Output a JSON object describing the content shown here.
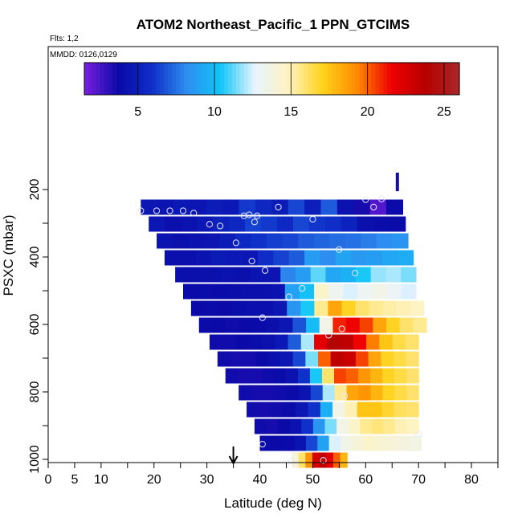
{
  "chart_data": {
    "type": "heatmap",
    "title": "ATOM2 Northeast_Pacific_1 PPN_GTCIMS",
    "flights_label": "Flts: 1,2",
    "dates_label": "MMDD: 0126,0129",
    "xlabel": "Latitude (deg N)",
    "ylabel": "PSXC (mbar)",
    "xlim": [
      0,
      85
    ],
    "ylim": [
      1000,
      100
    ],
    "x_ticks": [
      0,
      5,
      10,
      20,
      30,
      40,
      50,
      60,
      70,
      80
    ],
    "x_minor_ticks": [
      15,
      25,
      35,
      45,
      55,
      65,
      75,
      85
    ],
    "y_ticks": [
      200,
      400,
      600,
      800,
      1000
    ],
    "y_minor_ticks": [
      300,
      500,
      700,
      900
    ],
    "colorbar": {
      "min": 1.5,
      "max": 26,
      "ticks": [
        5,
        10,
        15,
        20,
        25
      ],
      "colors": [
        "#7b1fe0",
        "#0a0aa8",
        "#0f2fc8",
        "#2e8df0",
        "#11c6f7",
        "#e8f4ff",
        "#fff3c0",
        "#ffd21a",
        "#ff8a00",
        "#ee0000",
        "#b70000",
        "#a82828"
      ]
    },
    "grid": false,
    "rows": [
      {
        "p": 250,
        "lat": [
          17.5,
          67
        ],
        "v": [
          4.5,
          4.3,
          4.6,
          4.4,
          4.8,
          4.6,
          6.2,
          5.5,
          4.8,
          6.5,
          5.0,
          7.0,
          4.2,
          3.5,
          2.3,
          3.8
        ]
      },
      {
        "p": 300,
        "lat": [
          19,
          67.5
        ],
        "v": [
          4.5,
          4.0,
          4.2,
          4.6,
          5.2,
          5.5,
          6.4,
          6.2,
          5.6,
          6.5,
          6.1,
          5.9,
          5.2,
          4.0,
          3.9,
          3.8
        ]
      },
      {
        "p": 350,
        "lat": [
          20.5,
          68
        ],
        "v": [
          4.3,
          4.0,
          4.2,
          4.4,
          4.8,
          5.6,
          6.0,
          6.3,
          6.5,
          7.0,
          7.2,
          7.4,
          7.5,
          7.8,
          8.2,
          8.5
        ]
      },
      {
        "p": 400,
        "lat": [
          22,
          69
        ],
        "v": [
          4.1,
          4.0,
          4.3,
          4.7,
          4.6,
          4.5,
          5.8,
          6.4,
          7.0,
          8.8,
          8.2,
          9.1,
          8.6,
          8.8,
          9.2,
          9.4
        ]
      },
      {
        "p": 450,
        "lat": [
          24,
          69.5
        ],
        "v": [
          4.0,
          4.1,
          4.0,
          4.2,
          4.1,
          4.3,
          4.4,
          8.0,
          8.8,
          11.2,
          9.2,
          9.6,
          10.5,
          11.8,
          12.0,
          11.5
        ]
      },
      {
        "p": 500,
        "lat": [
          25.5,
          69.5
        ],
        "v": [
          3.8,
          3.9,
          3.8,
          3.9,
          4.0,
          4.1,
          4.2,
          9.0,
          10.2,
          14.5,
          13.2,
          12.5,
          13.1,
          13.5,
          13.0,
          12.5
        ]
      },
      {
        "p": 550,
        "lat": [
          27,
          71
        ],
        "v": [
          3.7,
          3.8,
          3.7,
          3.9,
          4.0,
          4.1,
          4.5,
          8.5,
          10.5,
          15.5,
          18.5,
          17.0,
          16.0,
          15.5,
          15.2,
          15.0,
          14.8
        ]
      },
      {
        "p": 600,
        "lat": [
          28.5,
          71.5
        ],
        "v": [
          3.8,
          3.7,
          3.6,
          3.7,
          3.8,
          4.0,
          4.5,
          6.8,
          10.0,
          13.5,
          21.0,
          21.5,
          20.5,
          18.5,
          17.0,
          16.0,
          15.5
        ]
      },
      {
        "p": 650,
        "lat": [
          30.5,
          70
        ],
        "v": [
          3.6,
          3.6,
          3.7,
          3.9,
          4.0,
          4.6,
          7.0,
          12.0,
          22.0,
          24.0,
          23.5,
          21.5,
          19.5,
          17.5,
          16.5,
          16.0
        ]
      },
      {
        "p": 700,
        "lat": [
          32,
          70
        ],
        "v": [
          3.6,
          3.5,
          3.5,
          3.7,
          4.0,
          4.5,
          6.5,
          11.5,
          20.0,
          23.5,
          23.0,
          20.5,
          18.5,
          17.0,
          16.5,
          16.0
        ]
      },
      {
        "p": 750,
        "lat": [
          33.5,
          70
        ],
        "v": [
          3.6,
          3.5,
          3.5,
          3.6,
          3.8,
          4.2,
          6.0,
          10.5,
          16.0,
          20.5,
          20.0,
          19.0,
          18.0,
          17.0,
          16.5,
          16.0
        ]
      },
      {
        "p": 800,
        "lat": [
          36,
          70
        ],
        "v": [
          3.6,
          3.5,
          3.5,
          3.6,
          3.8,
          4.3,
          6.5,
          12.0,
          15.5,
          18.5,
          19.0,
          18.0,
          17.0,
          16.5,
          16.0
        ]
      },
      {
        "p": 850,
        "lat": [
          37.5,
          70
        ],
        "v": [
          3.6,
          3.5,
          3.6,
          3.8,
          4.5,
          6.0,
          9.5,
          13.5,
          15.0,
          17.5,
          17.5,
          16.8,
          16.2,
          16.0
        ]
      },
      {
        "p": 900,
        "lat": [
          39,
          70
        ],
        "v": [
          3.6,
          3.5,
          3.7,
          4.2,
          6.0,
          8.5,
          11.5,
          13.5,
          14.5,
          15.5,
          15.8,
          15.5,
          15.0,
          14.8
        ]
      },
      {
        "p": 950,
        "lat": [
          40,
          70.5
        ],
        "v": [
          3.8,
          3.7,
          3.8,
          4.3,
          6.5,
          9.0,
          12.5,
          13.5,
          14.0,
          14.5,
          14.2,
          14.0,
          13.8,
          13.6
        ]
      },
      {
        "p": 1000,
        "lat": [
          46,
          56.5
        ],
        "v": [
          14.0,
          16.0,
          19.0,
          22.5,
          23.5,
          22.0,
          20.0,
          18.0
        ]
      }
    ],
    "spike": {
      "lat": 66,
      "p_top": 150,
      "p_bottom": 205,
      "value": 3.5
    },
    "markers": [
      {
        "lat": 17.5,
        "p": 263
      },
      {
        "lat": 20.5,
        "p": 263
      },
      {
        "lat": 23,
        "p": 263
      },
      {
        "lat": 25.5,
        "p": 263
      },
      {
        "lat": 27.5,
        "p": 270
      },
      {
        "lat": 30.5,
        "p": 303
      },
      {
        "lat": 32.5,
        "p": 308
      },
      {
        "lat": 37,
        "p": 278
      },
      {
        "lat": 38,
        "p": 275
      },
      {
        "lat": 39,
        "p": 296
      },
      {
        "lat": 39.5,
        "p": 278
      },
      {
        "lat": 43.5,
        "p": 252
      },
      {
        "lat": 50,
        "p": 288
      },
      {
        "lat": 60,
        "p": 230
      },
      {
        "lat": 61.5,
        "p": 252
      },
      {
        "lat": 63,
        "p": 228
      },
      {
        "lat": 35.5,
        "p": 358
      },
      {
        "lat": 38.5,
        "p": 412
      },
      {
        "lat": 55,
        "p": 378
      },
      {
        "lat": 41,
        "p": 440
      },
      {
        "lat": 58,
        "p": 448
      },
      {
        "lat": 48,
        "p": 493
      },
      {
        "lat": 45.5,
        "p": 518
      },
      {
        "lat": 69,
        "p": 507
      },
      {
        "lat": 40.5,
        "p": 580
      },
      {
        "lat": 53,
        "p": 632
      },
      {
        "lat": 55.5,
        "p": 613
      },
      {
        "lat": 56,
        "p": 812
      },
      {
        "lat": 70,
        "p": 925
      },
      {
        "lat": 40.5,
        "p": 955
      },
      {
        "lat": 46,
        "p": 1005
      },
      {
        "lat": 52,
        "p": 1003
      }
    ],
    "arrow": {
      "lat": 35
    }
  }
}
